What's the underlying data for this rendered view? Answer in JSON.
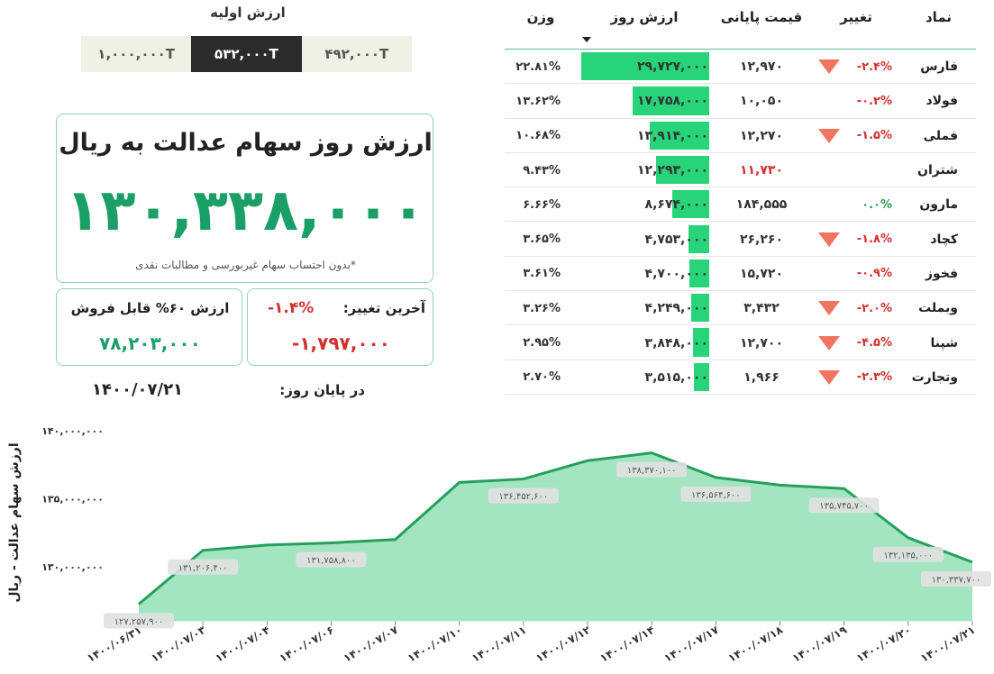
{
  "initial_value": {
    "title": "ارزش اولیه",
    "options": [
      "۱,۰۰۰,۰۰۰T",
      "۵۳۲,۰۰۰T",
      "۴۹۲,۰۰۰T"
    ],
    "selected": 1
  },
  "summary": {
    "title": "ارزش روز سهام عدالت به ریال",
    "value": "۱۳۰,۳۳۸,۰۰۰",
    "note": "*بدون احتساب سهام غیربورسی و مطالبات نقدی"
  },
  "last_change": {
    "label": "آخرین تغییر:",
    "percent": "-۱.۴%",
    "amount": "-۱,۷۹۷,۰۰۰"
  },
  "sellable": {
    "label": "ارزش ۶۰% قابل فروش",
    "value": "۷۸,۲۰۳,۰۰۰"
  },
  "end_of_day": {
    "label": "در پایان روز:",
    "date": "۱۴۰۰/۰۷/۲۱"
  },
  "table": {
    "columns": [
      "نماد",
      "تغییر",
      "قیمت پایانی",
      "ارزش روز",
      "وزن"
    ],
    "sort_column": 3,
    "bar_color": "#27d47a",
    "rows": [
      {
        "symbol": "فارس",
        "change": "-۲.۴%",
        "change_color": "#d32f2f",
        "arrow": true,
        "price": "۱۲,۹۷۰",
        "value": "۲۹,۷۲۷,۰۰۰",
        "weight": "۲۲.۸۱%"
      },
      {
        "symbol": "فولاد",
        "change": "-۰.۲%",
        "change_color": "#d32f2f",
        "arrow": false,
        "price": "۱۰,۰۵۰",
        "value": "۱۷,۷۵۸,۰۰۰",
        "weight": "۱۳.۶۲%"
      },
      {
        "symbol": "فملی",
        "change": "-۱.۵%",
        "change_color": "#d32f2f",
        "arrow": true,
        "price": "۱۲,۲۷۰",
        "value": "۱۳,۹۱۴,۰۰۰",
        "weight": "۱۰.۶۸%"
      },
      {
        "symbol": "شتران",
        "arrow": false,
        "price": "۱۱,۷۳۰",
        "price_color": "#d32f2f",
        "value": "۱۲,۲۹۳,۰۰۰",
        "weight": "۹.۴۳%"
      },
      {
        "symbol": "مارون",
        "change": "۰.۰%",
        "change_color": "#2e9e4f",
        "arrow": false,
        "price": "۱۸۴,۵۵۵",
        "value": "۸,۶۷۴,۰۰۰",
        "weight": "۶.۶۶%"
      },
      {
        "symbol": "کچاد",
        "change": "-۱.۸%",
        "change_color": "#d32f2f",
        "arrow": true,
        "price": "۲۶,۲۶۰",
        "value": "۴,۷۵۳,۰۰۰",
        "weight": "۳.۶۵%"
      },
      {
        "symbol": "فخوز",
        "change": "-۰.۹%",
        "change_color": "#d32f2f",
        "arrow": false,
        "price": "۱۵,۷۲۰",
        "value": "۴,۷۰۰,۰۰۰",
        "weight": "۳.۶۱%"
      },
      {
        "symbol": "وبملت",
        "change": "-۲.۰%",
        "change_color": "#d32f2f",
        "arrow": true,
        "price": "۳,۴۳۲",
        "value": "۴,۲۴۹,۰۰۰",
        "weight": "۳.۲۶%"
      },
      {
        "symbol": "شپنا",
        "change": "-۴.۵%",
        "change_color": "#d32f2f",
        "arrow": true,
        "price": "۱۲,۷۰۰",
        "value": "۳,۸۴۸,۰۰۰",
        "weight": "۲.۹۵%"
      },
      {
        "symbol": "وتجارت",
        "change": "-۲.۳%",
        "change_color": "#d32f2f",
        "arrow": true,
        "price": "۱,۹۶۶",
        "value": "۳,۵۱۵,۰۰۰",
        "weight": "۲.۷۰%"
      }
    ]
  },
  "chart_data": {
    "type": "area",
    "y_label": "ارزش سهام عدالت - ریال",
    "categories": [
      "۱۴۰۰/۰۶/۳۱",
      "۱۴۰۰/۰۷/۰۳",
      "۱۴۰۰/۰۷/۰۴",
      "۱۴۰۰/۰۷/۰۶",
      "۱۴۰۰/۰۷/۰۷",
      "۱۴۰۰/۰۷/۱۰",
      "۱۴۰۰/۰۷/۱۱",
      "۱۴۰۰/۰۷/۱۲",
      "۱۴۰۰/۰۷/۱۴",
      "۱۴۰۰/۰۷/۱۷",
      "۱۴۰۰/۰۷/۱۸",
      "۱۴۰۰/۰۷/۱۹",
      "۱۴۰۰/۰۷/۲۰",
      "۱۴۰۰/۰۷/۲۱"
    ],
    "values": [
      127257900,
      131206400,
      131600000,
      131758800,
      132000000,
      136200000,
      136452600,
      137800000,
      138370100,
      136564600,
      136000000,
      135745700,
      132135000,
      130337700
    ],
    "value_labels": [
      "۱۲۷,۲۵۷,۹۰۰",
      "۱۳۱,۲۰۶,۴۰۰",
      null,
      "۱۳۱,۷۵۸,۸۰۰",
      null,
      null,
      "۱۳۶,۴۵۲,۶۰۰",
      null,
      "۱۳۸,۳۷۰,۱۰۰",
      "۱۳۶,۵۶۴,۶۰۰",
      null,
      "۱۳۵,۷۴۵,۷۰۰",
      "۱۳۲,۱۳۵,۰۰۰",
      "۱۳۰,۳۳۷,۷۰۰"
    ],
    "color": "#24a05c",
    "area_color": "#a3e4c1",
    "ylim": [
      126000000,
      140000000
    ],
    "yticks": [
      {
        "value": 130000000,
        "label": "۱۳۰,۰۰۰,۰۰۰"
      },
      {
        "value": 135000000,
        "label": "۱۳۵,۰۰۰,۰۰۰"
      },
      {
        "value": 140000000,
        "label": "۱۴۰,۰۰۰,۰۰۰"
      }
    ],
    "grid": false
  }
}
